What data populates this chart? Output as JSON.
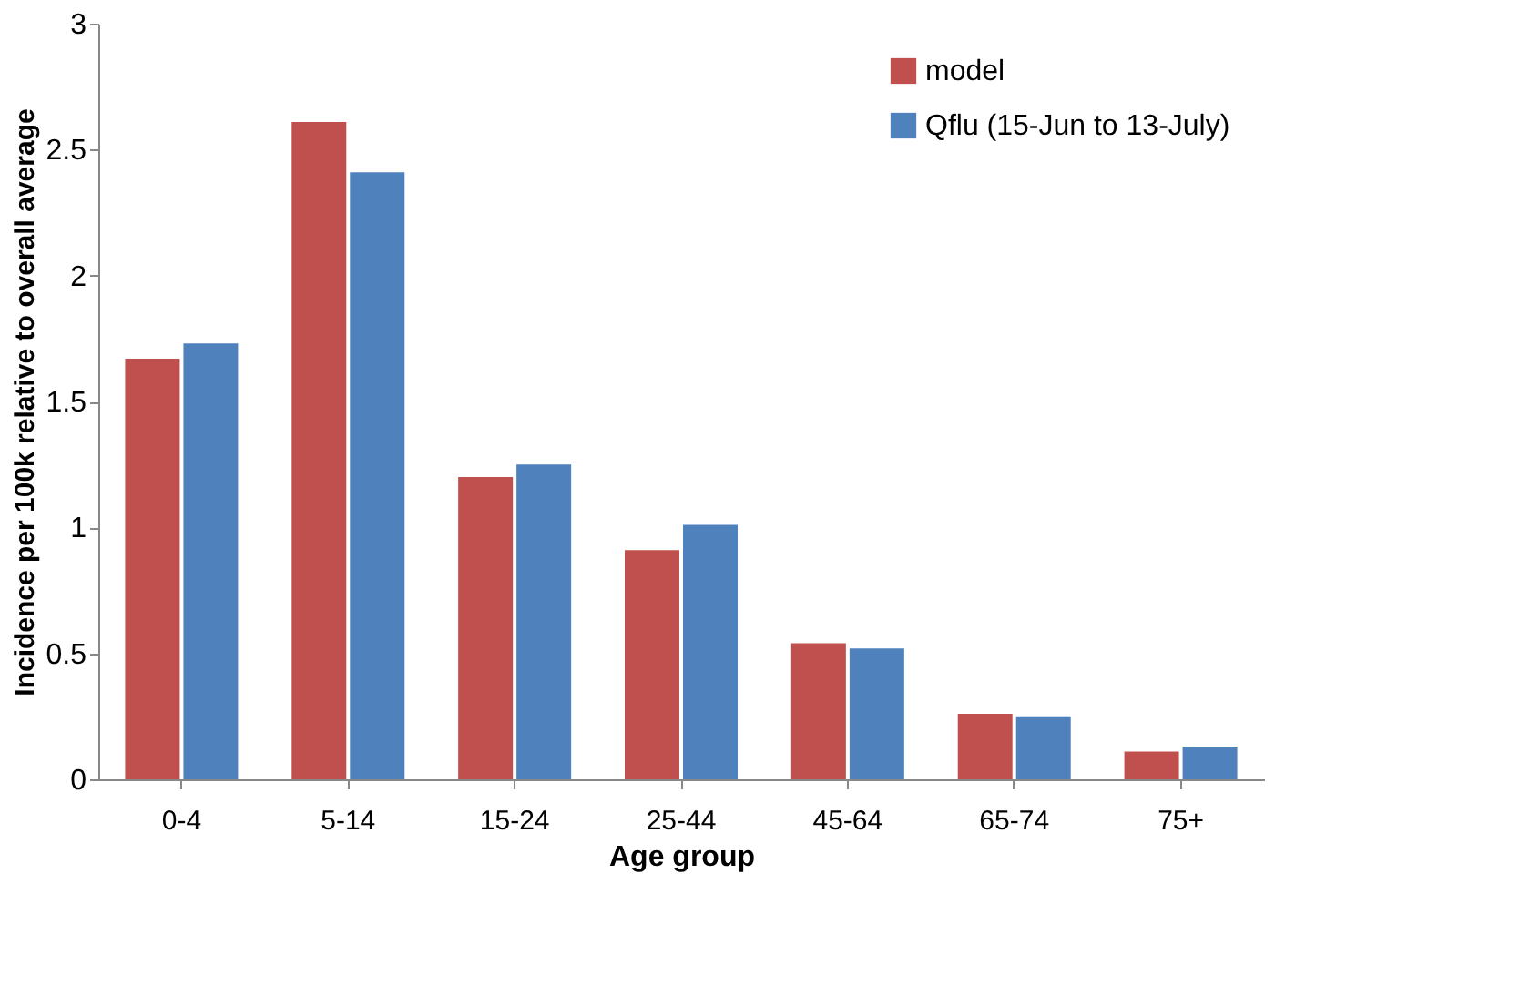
{
  "chart_data": {
    "type": "bar",
    "xlabel": "Age group",
    "ylabel": "Incidence per 100k relative to overall average",
    "categories": [
      "0-4",
      "5-14",
      "15-24",
      "25-44",
      "45-64",
      "65-74",
      "75+"
    ],
    "series": [
      {
        "name": "model",
        "color": "#c0504d",
        "values": [
          1.67,
          2.61,
          1.2,
          0.91,
          0.54,
          0.26,
          0.11
        ]
      },
      {
        "name": "Qflu (15-Jun to 13-July)",
        "color": "#4f81bd",
        "values": [
          1.73,
          2.41,
          1.25,
          1.01,
          0.52,
          0.25,
          0.13
        ]
      }
    ],
    "ylim": [
      0,
      3
    ],
    "yticks": [
      0,
      0.5,
      1,
      1.5,
      2,
      2.5,
      3
    ],
    "grid": false,
    "legend": "top right"
  }
}
